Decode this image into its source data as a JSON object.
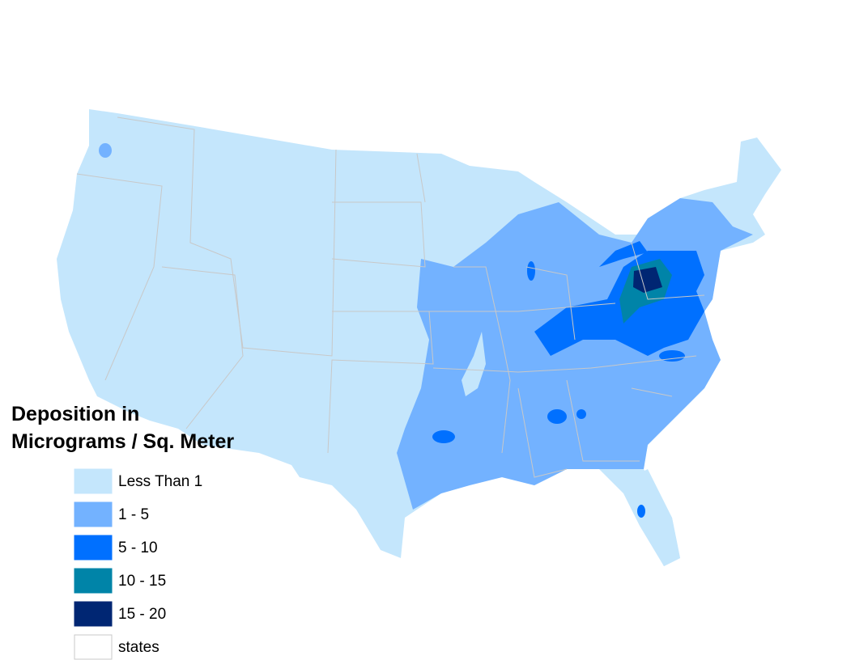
{
  "legend": {
    "title": [
      "Deposition in",
      "Micrograms / Sq. Meter"
    ],
    "items": [
      {
        "label": "Less Than 1",
        "color": "#c4e6fc"
      },
      {
        "label": "1 - 5",
        "color": "#73b2ff"
      },
      {
        "label": "5 - 10",
        "color": "#0070ff"
      },
      {
        "label": "10 - 15",
        "color": "#0084a8"
      },
      {
        "label": "15 - 20",
        "color": "#002673"
      },
      {
        "label": "states",
        "color": "#ffffff"
      }
    ]
  }
}
